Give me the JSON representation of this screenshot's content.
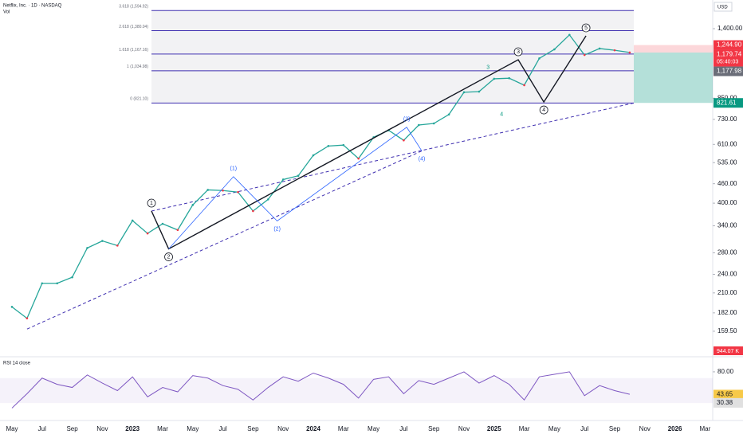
{
  "chart_data": {
    "type": "line",
    "title": "Netflix, Inc. · 1D · NASDAQ",
    "subtitle": "Vol",
    "currency": "USD",
    "log_scale": true,
    "categories": [
      "May",
      null,
      "Jul",
      null,
      "Sep",
      null,
      "Nov",
      null,
      "2023",
      null,
      "Mar",
      null,
      "May",
      null,
      "Jul",
      null,
      "Sep",
      null,
      "Nov",
      null,
      "2024",
      null,
      "Mar",
      null,
      "May",
      null,
      "Jul",
      null,
      "Sep",
      null,
      "Nov",
      null,
      "2025",
      null,
      "Mar",
      null,
      "May",
      null,
      "Jul",
      null,
      "Sep",
      null,
      "Nov",
      null,
      "2026",
      null,
      "Mar"
    ],
    "series": [
      {
        "name": "Netflix",
        "color": "#26a69a",
        "values": [
          190,
          175,
          225,
          225,
          235,
          290,
          305,
          295,
          353,
          322,
          345,
          330,
          395,
          440,
          438,
          433,
          378,
          411,
          474,
          487,
          564,
          603,
          607,
          551,
          642,
          675,
          628,
          701,
          709,
          756,
          887,
          891,
          977,
          981,
          933,
          1131,
          1207,
          1339,
          1159,
          1214,
          1199,
          1180,
          null,
          null,
          null,
          null,
          null
        ]
      }
    ],
    "ylim": [
      139,
      1720
    ],
    "yticks": [
      {
        "value": 1400,
        "label": "1,400.00"
      },
      {
        "value": 850,
        "label": "850.00"
      },
      {
        "value": 730,
        "label": "730.00"
      },
      {
        "value": 610,
        "label": "610.00"
      },
      {
        "value": 535,
        "label": "535.00"
      },
      {
        "value": 460,
        "label": "460.00"
      },
      {
        "value": 400,
        "label": "400.00"
      },
      {
        "value": 340,
        "label": "340.00"
      },
      {
        "value": 280,
        "label": "280.00"
      },
      {
        "value": 240,
        "label": "240.00"
      },
      {
        "value": 210,
        "label": "210.00"
      },
      {
        "value": 182,
        "label": "182.00"
      },
      {
        "value": 159.5,
        "label": "159.50"
      }
    ],
    "fib_levels": [
      {
        "value": 1594.92,
        "label": "3.618 (1,594.92)"
      },
      {
        "value": 1380.04,
        "label": "2.618 (1,380.04)"
      },
      {
        "value": 1167.16,
        "label": "1.618 (1,167.16)"
      },
      {
        "value": 1034.98,
        "label": "1 (1,034.98)"
      },
      {
        "value": 821.1,
        "label": "0 (821.10)"
      }
    ],
    "waves": [
      {
        "label": "1",
        "x": 9.26,
        "y": 378,
        "color": "#131722"
      },
      {
        "label": "2",
        "x": 10.4,
        "y": 288,
        "color": "#131722"
      },
      {
        "label": "3",
        "x": 33.6,
        "y": 1120,
        "color": "#131722"
      },
      {
        "label": "4",
        "x": 35.3,
        "y": 827,
        "color": "#131722"
      },
      {
        "label": "5",
        "x": 38.1,
        "y": 1330,
        "color": "#131722"
      },
      {
        "label": "(1)",
        "x": 14.7,
        "y": 484,
        "color": "#2962ff"
      },
      {
        "label": "(2)",
        "x": 17.6,
        "y": 352,
        "color": "#2962ff"
      },
      {
        "label": "(3)",
        "x": 26.2,
        "y": 690,
        "color": "#2962ff"
      },
      {
        "label": "(4)",
        "x": 27.2,
        "y": 582,
        "color": "#2962ff"
      },
      {
        "label": "3",
        "x": 31.6,
        "y": 1000,
        "color": "#089981"
      },
      {
        "label": "4",
        "x": 32.5,
        "y": 800,
        "color": "#089981"
      }
    ],
    "price_tags": [
      {
        "value": 1244.9,
        "label": "1,244.90",
        "color": "#f23645"
      },
      {
        "value": 1179.74,
        "label": "1,179.74",
        "color": "#f23645",
        "note": "05:40:03"
      },
      {
        "value": 1177.98,
        "label": "1,177.98",
        "color": "#6a6d78"
      },
      {
        "value": 821.61,
        "label": "821.61",
        "color": "#089981"
      }
    ],
    "volume_label": "944.07 K",
    "rsi": {
      "title": "RSI 14 close",
      "ylim": [
        6,
        99
      ],
      "yticks": [
        {
          "value": 80,
          "label": "80.00"
        }
      ],
      "values": [
        22,
        45,
        70,
        60,
        55,
        75,
        62,
        50,
        72,
        40,
        55,
        48,
        74,
        70,
        58,
        52,
        35,
        55,
        72,
        65,
        78,
        70,
        60,
        38,
        68,
        72,
        45,
        66,
        60,
        70,
        80,
        62,
        74,
        60,
        35,
        72,
        76,
        80,
        42,
        58,
        50,
        44
      ],
      "tags": [
        {
          "value": 43.65,
          "label": "43.65",
          "color": "#f7c948"
        },
        {
          "value": 30.38,
          "label": "30.38",
          "color": "#e0e0e0"
        }
      ]
    }
  }
}
